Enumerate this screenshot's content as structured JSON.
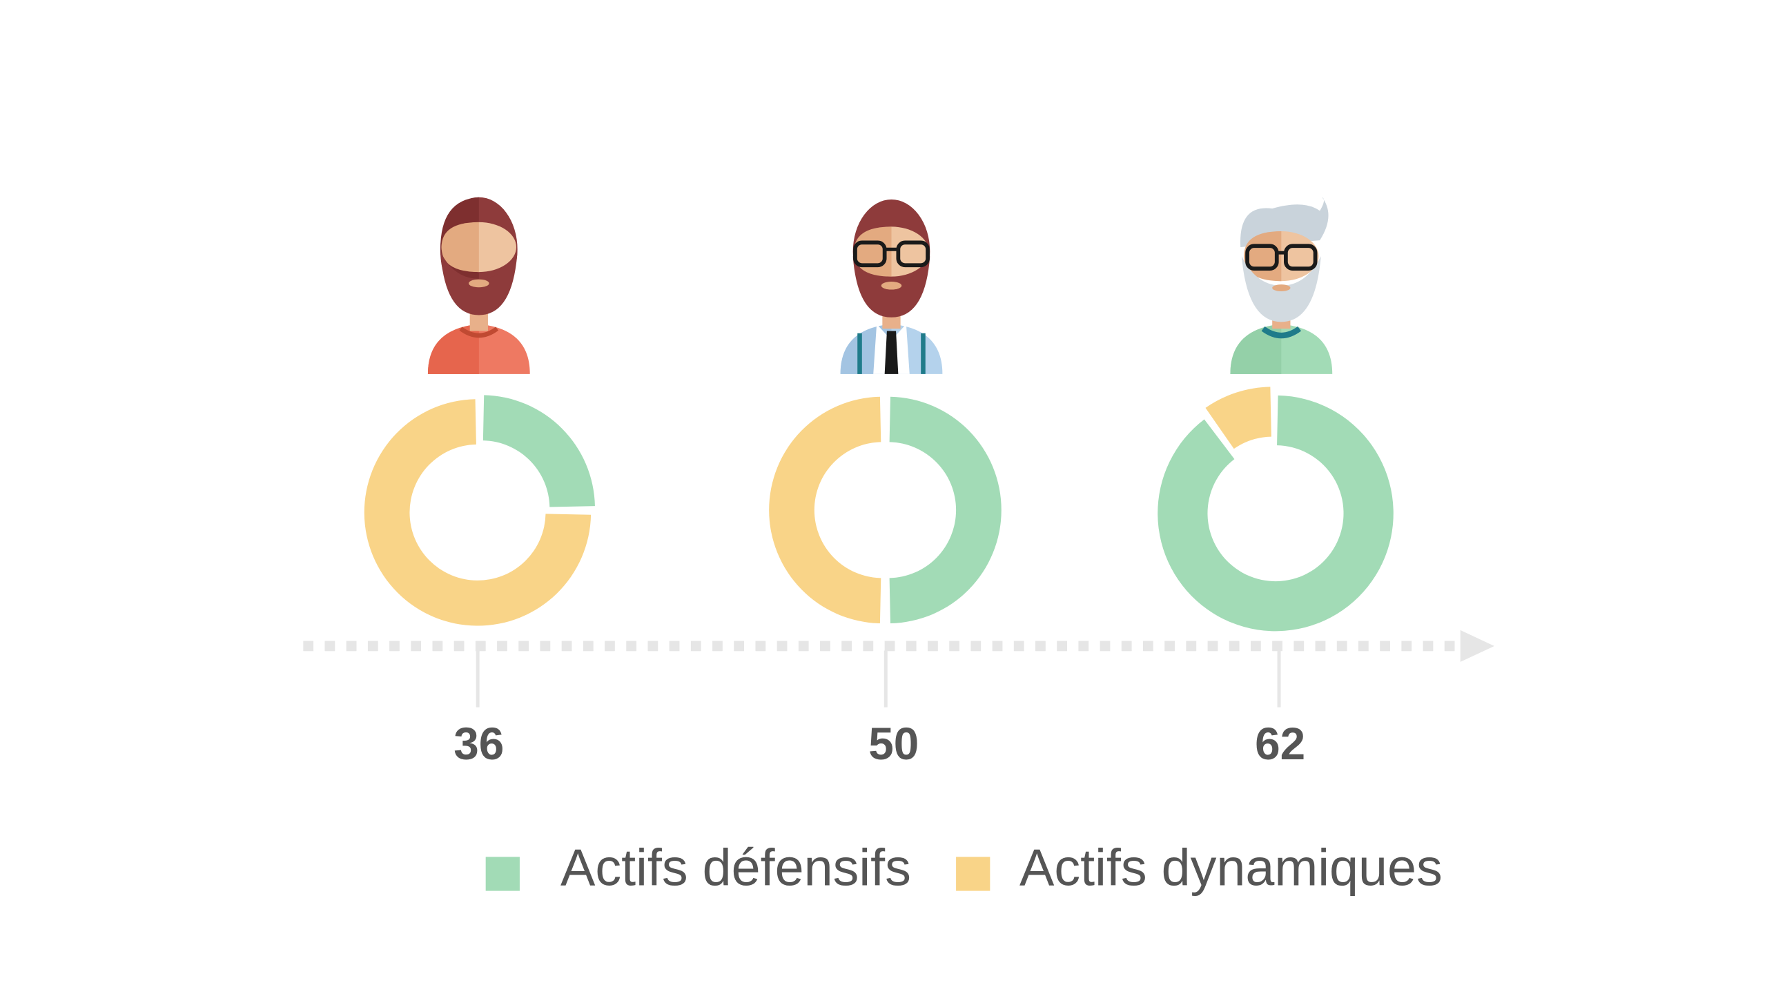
{
  "chart_data": {
    "type": "pie",
    "title": "",
    "series": [
      {
        "name": "Actifs défensifs",
        "color": "#a2dbb6"
      },
      {
        "name": "Actifs dynamiques",
        "color": "#f9d488"
      }
    ],
    "categories": [
      "36",
      "50",
      "62"
    ],
    "points": [
      {
        "age": "36",
        "defensive_pct": 25,
        "dynamic_pct": 75,
        "avatar": "bearded-man-red-shirt-icon"
      },
      {
        "age": "50",
        "defensive_pct": 50,
        "dynamic_pct": 50,
        "avatar": "bearded-man-glasses-tie-icon"
      },
      {
        "age": "62",
        "defensive_pct": 90,
        "dynamic_pct": 10,
        "avatar": "grey-haired-man-glasses-icon"
      }
    ],
    "legend_position": "bottom",
    "timeline_axis": "arrow-right"
  },
  "legend": {
    "items": [
      {
        "label": "Actifs défensifs",
        "color": "#a2dbb6"
      },
      {
        "label": "Actifs dynamiques",
        "color": "#f9d488"
      }
    ]
  }
}
